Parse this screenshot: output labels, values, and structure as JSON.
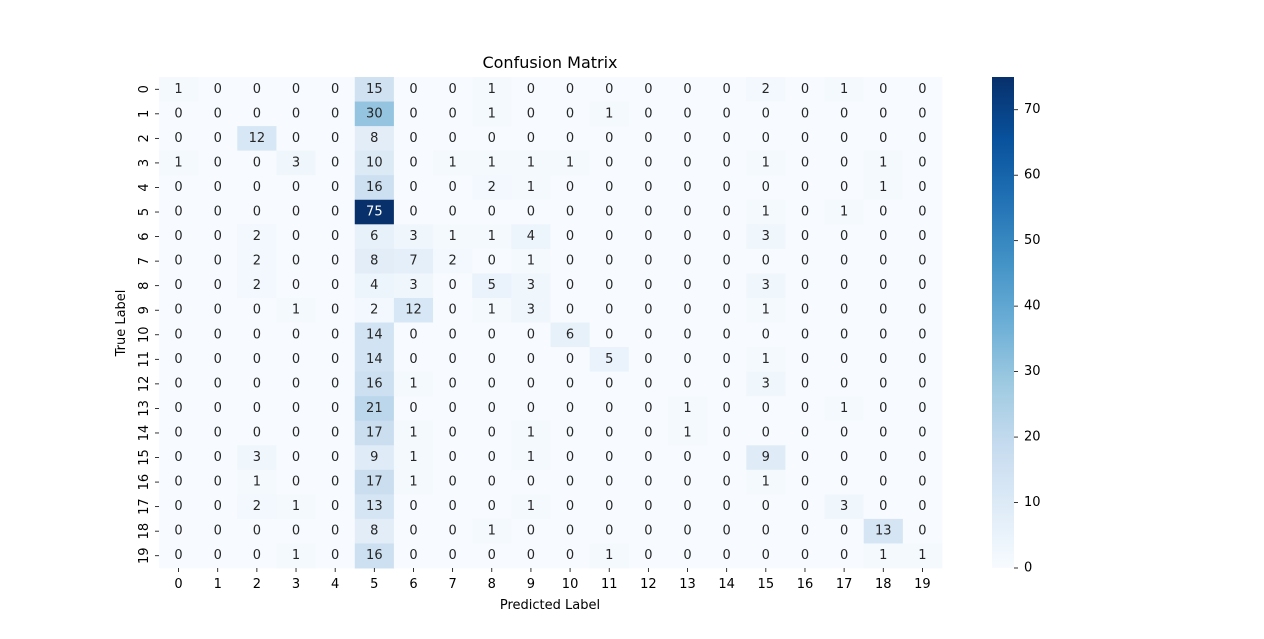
{
  "chart_data": {
    "type": "heatmap",
    "title": "Confusion Matrix",
    "xlabel": "Predicted Label",
    "ylabel": "True Label",
    "x_categories": [
      "0",
      "1",
      "2",
      "3",
      "4",
      "5",
      "6",
      "7",
      "8",
      "9",
      "10",
      "11",
      "12",
      "13",
      "14",
      "15",
      "16",
      "17",
      "18",
      "19"
    ],
    "y_categories": [
      "0",
      "1",
      "2",
      "3",
      "4",
      "5",
      "6",
      "7",
      "8",
      "9",
      "10",
      "11",
      "12",
      "13",
      "14",
      "15",
      "16",
      "17",
      "18",
      "19"
    ],
    "values": [
      [
        1,
        0,
        0,
        0,
        0,
        15,
        0,
        0,
        1,
        0,
        0,
        0,
        0,
        0,
        0,
        2,
        0,
        1,
        0,
        0
      ],
      [
        0,
        0,
        0,
        0,
        0,
        30,
        0,
        0,
        1,
        0,
        0,
        1,
        0,
        0,
        0,
        0,
        0,
        0,
        0,
        0
      ],
      [
        0,
        0,
        12,
        0,
        0,
        8,
        0,
        0,
        0,
        0,
        0,
        0,
        0,
        0,
        0,
        0,
        0,
        0,
        0,
        0
      ],
      [
        1,
        0,
        0,
        3,
        0,
        10,
        0,
        1,
        1,
        1,
        1,
        0,
        0,
        0,
        0,
        1,
        0,
        0,
        1,
        0
      ],
      [
        0,
        0,
        0,
        0,
        0,
        16,
        0,
        0,
        2,
        1,
        0,
        0,
        0,
        0,
        0,
        0,
        0,
        0,
        1,
        0
      ],
      [
        0,
        0,
        0,
        0,
        0,
        75,
        0,
        0,
        0,
        0,
        0,
        0,
        0,
        0,
        0,
        1,
        0,
        1,
        0,
        0
      ],
      [
        0,
        0,
        2,
        0,
        0,
        6,
        3,
        1,
        1,
        4,
        0,
        0,
        0,
        0,
        0,
        3,
        0,
        0,
        0,
        0
      ],
      [
        0,
        0,
        2,
        0,
        0,
        8,
        7,
        2,
        0,
        1,
        0,
        0,
        0,
        0,
        0,
        0,
        0,
        0,
        0,
        0
      ],
      [
        0,
        0,
        2,
        0,
        0,
        4,
        3,
        0,
        5,
        3,
        0,
        0,
        0,
        0,
        0,
        3,
        0,
        0,
        0,
        0
      ],
      [
        0,
        0,
        0,
        1,
        0,
        2,
        12,
        0,
        1,
        3,
        0,
        0,
        0,
        0,
        0,
        1,
        0,
        0,
        0,
        0
      ],
      [
        0,
        0,
        0,
        0,
        0,
        14,
        0,
        0,
        0,
        0,
        6,
        0,
        0,
        0,
        0,
        0,
        0,
        0,
        0,
        0
      ],
      [
        0,
        0,
        0,
        0,
        0,
        14,
        0,
        0,
        0,
        0,
        0,
        5,
        0,
        0,
        0,
        1,
        0,
        0,
        0,
        0
      ],
      [
        0,
        0,
        0,
        0,
        0,
        16,
        1,
        0,
        0,
        0,
        0,
        0,
        0,
        0,
        0,
        3,
        0,
        0,
        0,
        0
      ],
      [
        0,
        0,
        0,
        0,
        0,
        21,
        0,
        0,
        0,
        0,
        0,
        0,
        0,
        1,
        0,
        0,
        0,
        1,
        0,
        0
      ],
      [
        0,
        0,
        0,
        0,
        0,
        17,
        1,
        0,
        0,
        1,
        0,
        0,
        0,
        1,
        0,
        0,
        0,
        0,
        0,
        0
      ],
      [
        0,
        0,
        3,
        0,
        0,
        9,
        1,
        0,
        0,
        1,
        0,
        0,
        0,
        0,
        0,
        9,
        0,
        0,
        0,
        0
      ],
      [
        0,
        0,
        1,
        0,
        0,
        17,
        1,
        0,
        0,
        0,
        0,
        0,
        0,
        0,
        0,
        1,
        0,
        0,
        0,
        0
      ],
      [
        0,
        0,
        2,
        1,
        0,
        13,
        0,
        0,
        0,
        1,
        0,
        0,
        0,
        0,
        0,
        0,
        0,
        3,
        0,
        0
      ],
      [
        0,
        0,
        0,
        0,
        0,
        8,
        0,
        0,
        1,
        0,
        0,
        0,
        0,
        0,
        0,
        0,
        0,
        0,
        13,
        0
      ],
      [
        0,
        0,
        0,
        1,
        0,
        16,
        0,
        0,
        0,
        0,
        0,
        1,
        0,
        0,
        0,
        0,
        0,
        0,
        1,
        1
      ]
    ],
    "colormap": "Blues",
    "vmin": 0,
    "vmax": 75,
    "colorbar_ticks": [
      0,
      10,
      20,
      30,
      40,
      50,
      60,
      70
    ],
    "annotations": true
  }
}
